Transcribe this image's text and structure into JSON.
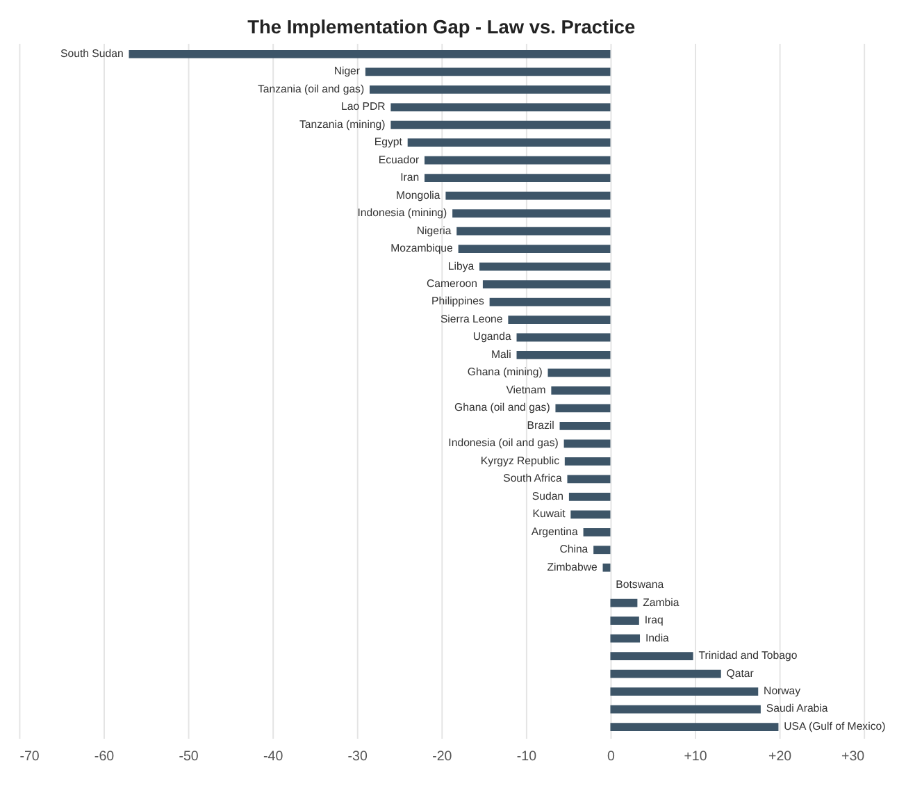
{
  "chart_data": {
    "type": "bar",
    "orientation": "horizontal",
    "title": "The Implementation Gap - Law vs. Practice",
    "categories": [
      "South Sudan",
      "Niger",
      "Tanzania (oil and gas)",
      "Lao PDR",
      "Tanzania (mining)",
      "Egypt",
      "Ecuador",
      "Iran",
      "Mongolia",
      "Indonesia (mining)",
      "Nigeria",
      "Mozambique",
      "Libya",
      "Cameroon",
      "Philippines",
      "Sierra Leone",
      "Uganda",
      "Mali",
      "Ghana (mining)",
      "Vietnam",
      "Ghana (oil and gas)",
      "Brazil",
      "Indonesia (oil and gas)",
      "Kyrgyz Republic",
      "South Africa",
      "Sudan",
      "Kuwait",
      "Argentina",
      "China",
      "Zimbabwe",
      "Botswana",
      "Zambia",
      "Iraq",
      "India",
      "Trinidad and Tobago",
      "Qatar",
      "Norway",
      "Saudi Arabia",
      "USA (Gulf of Mexico)"
    ],
    "values": [
      -57,
      -29,
      -28.5,
      -26,
      -26,
      -24,
      -22,
      -22,
      -19.5,
      -18.7,
      -18.2,
      -18,
      -15.5,
      -15.1,
      -14.3,
      -12.1,
      -11.1,
      -11.1,
      -7.4,
      -7,
      -6.5,
      -6,
      -5.5,
      -5.4,
      -5.1,
      -4.9,
      -4.7,
      -3.2,
      -2,
      -0.9,
      0,
      3.2,
      3.4,
      3.5,
      9.8,
      13.1,
      17.5,
      17.8,
      19.9
    ],
    "color": "#3d5568",
    "xlim": [
      -70,
      30
    ],
    "xticks": [
      -70,
      -60,
      -50,
      -40,
      -30,
      -20,
      -10,
      0,
      {
        "value": 10,
        "label": "+10"
      },
      {
        "value": 20,
        "label": "+20"
      },
      {
        "value": 30,
        "label": "+30"
      }
    ],
    "grid": "x",
    "tick_labels": "x"
  }
}
